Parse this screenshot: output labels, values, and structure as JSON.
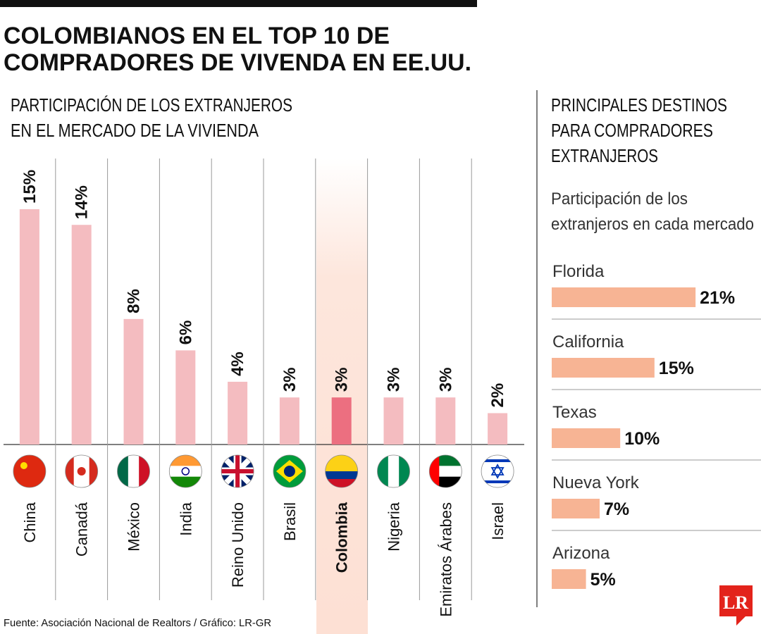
{
  "title": [
    "COLOMBIANOS EN EL TOP 10 DE",
    "COMPRADORES DE VIVENDA EN EE.UU."
  ],
  "source": "Fuente:  Asociación Nacional de Realtors / Gráfico: LR-GR",
  "logo": "LR",
  "chart_data": [
    {
      "type": "bar",
      "subtitle": [
        "PARTICIPACIÓN DE LOS EXTRANJEROS",
        "EN EL MERCADO DE LA VIVIENDA"
      ],
      "categories": [
        "China",
        "Canadá",
        "México",
        "India",
        "Reino Unido",
        "Brasil",
        "Colombia",
        "Nigeria",
        "Emiratos Árabes",
        "Israel"
      ],
      "values": [
        15,
        14,
        8,
        6,
        4,
        3,
        3,
        3,
        3,
        2
      ],
      "value_labels": [
        "15%",
        "14%",
        "8%",
        "6%",
        "4%",
        "3%",
        "3%",
        "3%",
        "3%",
        "2%"
      ],
      "color": "#f4bcc0",
      "highlight_category": "Colombia",
      "highlight_color": "#ec6f80"
    },
    {
      "type": "hbar",
      "title": [
        "PRINCIPALES DESTINOS",
        "PARA COMPRADORES",
        "EXTRANJEROS"
      ],
      "subtitle": [
        "Participación de los",
        "extranjeros en cada mercado"
      ],
      "categories": [
        "Florida",
        "California",
        "Texas",
        "Nueva York",
        "Arizona"
      ],
      "values": [
        21,
        15,
        10,
        7,
        5
      ],
      "value_labels": [
        "21%",
        "15%",
        "10%",
        "7%",
        "5%"
      ],
      "color": "#f7b494"
    }
  ]
}
